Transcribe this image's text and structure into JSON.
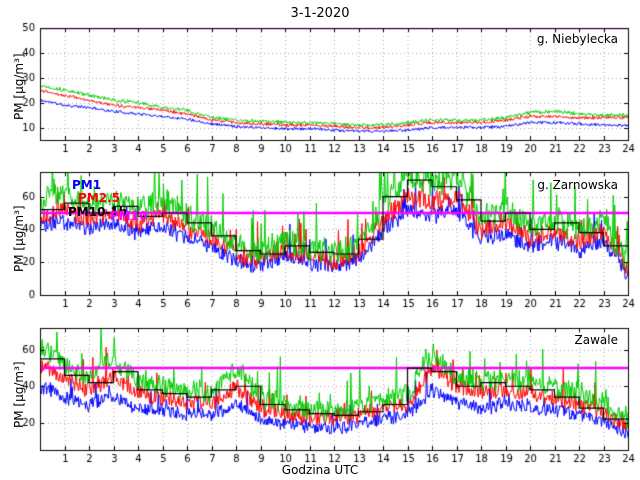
{
  "title": "3-1-2020",
  "xlabel": "Godzina UTC",
  "ylabel": "PM [µg/m³]",
  "limit_line": {
    "value": 50,
    "color": "#ff00ff"
  },
  "legend": {
    "pm1": {
      "label": "PM1",
      "color": "#0000ff"
    },
    "pm25": {
      "label": "PM2.5",
      "color": "#ff0000"
    },
    "pm10_1h": {
      "label": "PM10-1h",
      "color": "#000000"
    },
    "pm10": {
      "label": "PM10",
      "color": "#ff00ff"
    }
  },
  "chart_data": [
    {
      "type": "line",
      "station": "g. Niebylecka",
      "xlabel": "Godzina UTC",
      "ylabel": "PM [µg/m³]",
      "xlim": [
        0,
        24
      ],
      "ylim": [
        5,
        50
      ],
      "xticks": [
        1,
        2,
        3,
        4,
        5,
        6,
        7,
        8,
        9,
        10,
        11,
        12,
        13,
        14,
        15,
        16,
        17,
        18,
        19,
        20,
        21,
        22,
        23,
        24
      ],
      "yticks": [
        10,
        20,
        30,
        40,
        50
      ],
      "limit": 50,
      "grid": true,
      "x_hours": [
        0,
        1,
        2,
        3,
        4,
        5,
        6,
        7,
        8,
        9,
        10,
        11,
        12,
        13,
        14,
        15,
        16,
        17,
        18,
        19,
        20,
        21,
        22,
        23,
        24
      ],
      "series": [
        {
          "name": "PM1",
          "color": "#0000ff",
          "noise": 0.7,
          "spiky": false,
          "seed": 11,
          "values": [
            21,
            19,
            18,
            16.5,
            15.5,
            14.5,
            13.5,
            11.5,
            10.5,
            10,
            9.5,
            9.5,
            9,
            8.5,
            8.5,
            9,
            10,
            10,
            10,
            10.5,
            12,
            12,
            11.5,
            11,
            11
          ]
        },
        {
          "name": "PM2.5",
          "color": "#ff0000",
          "noise": 0.8,
          "spiky": false,
          "seed": 12,
          "values": [
            25,
            23,
            21,
            19,
            18,
            17,
            15.5,
            13,
            12,
            11.5,
            11,
            11,
            10.5,
            10,
            10,
            11,
            12,
            12,
            12,
            13,
            14.5,
            14.5,
            14,
            14,
            14
          ]
        },
        {
          "name": "PM10",
          "color": "#00cc00",
          "noise": 0.9,
          "spiky": false,
          "seed": 13,
          "values": [
            27,
            25,
            23,
            21,
            20,
            18,
            17,
            14,
            13,
            12.5,
            12,
            12,
            11.5,
            11,
            11,
            12,
            13,
            13,
            13,
            14,
            16,
            16.5,
            15.5,
            15,
            15
          ]
        }
      ],
      "step_series": null
    },
    {
      "type": "line",
      "station": "g. Zarnowska",
      "xlabel": "Godzina UTC",
      "ylabel": "PM [µg/m³]",
      "xlim": [
        0,
        24
      ],
      "ylim": [
        0,
        75
      ],
      "xticks": [
        1,
        2,
        3,
        4,
        5,
        6,
        7,
        8,
        9,
        10,
        11,
        12,
        13,
        14,
        15,
        16,
        17,
        18,
        19,
        20,
        21,
        22,
        23,
        24
      ],
      "yticks": [
        0,
        20,
        40,
        60
      ],
      "limit": 50,
      "grid": true,
      "x_hours": [
        0,
        1,
        2,
        3,
        4,
        5,
        6,
        7,
        8,
        9,
        10,
        11,
        12,
        13,
        14,
        15,
        16,
        17,
        18,
        19,
        20,
        21,
        22,
        23,
        24
      ],
      "series": [
        {
          "name": "PM1",
          "color": "#0000ff",
          "noise": 6,
          "spiky": true,
          "seed": 21,
          "values": [
            42,
            45,
            40,
            44,
            38,
            42,
            35,
            29,
            20,
            18,
            24,
            19,
            18,
            21,
            40,
            52,
            48,
            52,
            34,
            38,
            30,
            33,
            28,
            32,
            13
          ]
        },
        {
          "name": "PM2.5",
          "color": "#ff0000",
          "noise": 7,
          "spiky": true,
          "seed": 22,
          "values": [
            48,
            52,
            46,
            50,
            44,
            48,
            40,
            34,
            24,
            22,
            28,
            23,
            21,
            25,
            46,
            60,
            56,
            60,
            40,
            44,
            35,
            38,
            33,
            38,
            16
          ]
        },
        {
          "name": "PM10",
          "color": "#00cc00",
          "noise": 9,
          "spiky": true,
          "seed": 23,
          "values": [
            58,
            62,
            55,
            60,
            52,
            58,
            48,
            42,
            30,
            26,
            34,
            28,
            26,
            30,
            55,
            72,
            68,
            72,
            48,
            52,
            42,
            46,
            40,
            45,
            20
          ]
        }
      ],
      "step_series": {
        "name": "PM10-1h",
        "color": "#000000",
        "values": [
          52,
          56,
          50,
          54,
          48,
          50,
          44,
          36,
          27,
          25,
          30,
          26,
          25,
          34,
          60,
          70,
          66,
          58,
          45,
          50,
          40,
          44,
          38,
          30
        ]
      }
    },
    {
      "type": "line",
      "station": "Zawale",
      "xlabel": "Godzina UTC",
      "ylabel": "PM [µg/m³]",
      "xlim": [
        0,
        24
      ],
      "ylim": [
        5,
        72
      ],
      "xticks": [
        1,
        2,
        3,
        4,
        5,
        6,
        7,
        8,
        9,
        10,
        11,
        12,
        13,
        14,
        15,
        16,
        17,
        18,
        19,
        20,
        21,
        22,
        23,
        24
      ],
      "yticks": [
        20,
        40,
        60
      ],
      "limit": 50,
      "grid": true,
      "x_hours": [
        0,
        1,
        2,
        3,
        4,
        5,
        6,
        7,
        8,
        9,
        10,
        11,
        12,
        13,
        14,
        15,
        16,
        17,
        18,
        19,
        20,
        21,
        22,
        23,
        24
      ],
      "series": [
        {
          "name": "PM1",
          "color": "#0000ff",
          "noise": 4.5,
          "spiky": true,
          "seed": 31,
          "values": [
            40,
            34,
            30,
            35,
            28,
            27,
            25,
            24,
            30,
            22,
            20,
            18,
            17,
            19,
            22,
            24,
            38,
            31,
            28,
            30,
            28,
            27,
            24,
            20,
            14
          ]
        },
        {
          "name": "PM2.5",
          "color": "#ff0000",
          "noise": 5.5,
          "spiky": true,
          "seed": 32,
          "values": [
            52,
            44,
            38,
            46,
            36,
            34,
            32,
            30,
            40,
            28,
            25,
            23,
            22,
            24,
            28,
            30,
            50,
            40,
            36,
            38,
            36,
            34,
            30,
            26,
            18
          ]
        },
        {
          "name": "PM10",
          "color": "#00cc00",
          "noise": 7,
          "spiky": true,
          "seed": 33,
          "values": [
            62,
            52,
            45,
            55,
            42,
            40,
            38,
            36,
            50,
            34,
            30,
            28,
            26,
            28,
            33,
            36,
            58,
            46,
            42,
            44,
            42,
            40,
            36,
            30,
            22
          ]
        }
      ],
      "step_series": {
        "name": "PM10-1h",
        "color": "#000000",
        "values": [
          55,
          46,
          42,
          48,
          38,
          36,
          34,
          38,
          40,
          30,
          27,
          25,
          24,
          26,
          30,
          50,
          48,
          40,
          42,
          40,
          38,
          34,
          28,
          22
        ]
      }
    }
  ]
}
